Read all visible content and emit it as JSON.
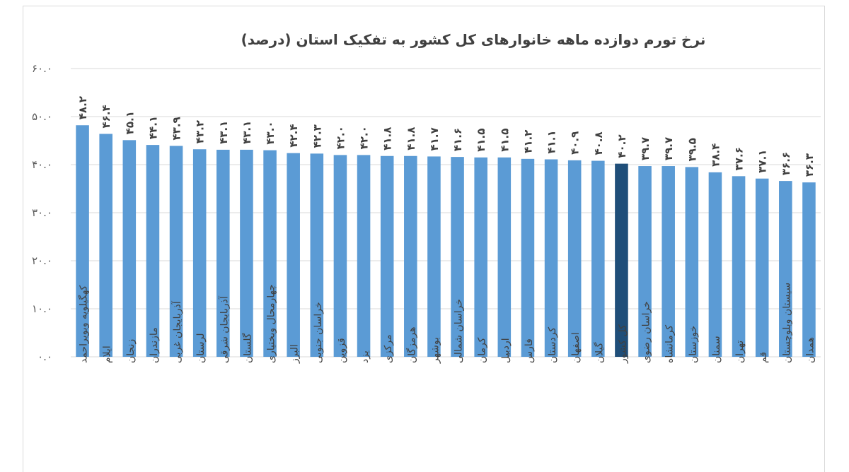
{
  "chart_data": {
    "type": "bar",
    "title": "نرخ تورم دوازده ماهه خانوارهای کل کشور به تفکیک استان (درصد)",
    "xlabel": "",
    "ylabel": "",
    "ylim": [
      0,
      60
    ],
    "yticks": [
      0,
      10,
      20,
      30,
      40,
      50,
      60
    ],
    "ytick_labels": [
      "۰.۰",
      "۱۰.۰",
      "۲۰.۰",
      "۳۰.۰",
      "۴۰.۰",
      "۵۰.۰",
      "۶۰.۰"
    ],
    "grid": true,
    "legend": "none",
    "bar_color": "#5b9bd5",
    "highlight_color": "#1f4e79",
    "highlight_category": "کل کشور",
    "categories": [
      "کهگیلویه وبویراحمد",
      "ایلام",
      "زنجان",
      "مازندران",
      "آذربایجان غربی",
      "لرستان",
      "آذربایجان شرقی",
      "گلستان",
      "چهارمحال وبختیاری",
      "البرز",
      "خراسان جنوبی",
      "قزوین",
      "یزد",
      "مرکزی",
      "هرمزگان",
      "بوشهر",
      "خراسان شمالی",
      "کرمان",
      "اردبیل",
      "فارس",
      "کردستان",
      "اصفهان",
      "گیلان",
      "کل کشور",
      "خراسان رضوی",
      "کرمانشاه",
      "خوزستان",
      "سمنان",
      "تهران",
      "قم",
      "سیستان وبلوچستان",
      "همدان"
    ],
    "values": [
      48.2,
      46.4,
      45.1,
      44.1,
      43.9,
      43.2,
      43.1,
      43.1,
      43.0,
      42.4,
      42.3,
      42.0,
      42.0,
      41.8,
      41.8,
      41.7,
      41.6,
      41.5,
      41.5,
      41.2,
      41.1,
      40.9,
      40.8,
      40.2,
      39.7,
      39.7,
      39.5,
      38.4,
      37.6,
      37.1,
      36.6,
      36.3
    ],
    "value_labels": [
      "۴۸.۲",
      "۴۶.۴",
      "۴۵.۱",
      "۴۴.۱",
      "۴۳.۹",
      "۴۳.۲",
      "۴۳.۱",
      "۴۳.۱",
      "۴۳.۰",
      "۴۲.۴",
      "۴۲.۳",
      "۴۲.۰",
      "۴۲.۰",
      "۴۱.۸",
      "۴۱.۸",
      "۴۱.۷",
      "۴۱.۶",
      "۴۱.۵",
      "۴۱.۵",
      "۴۱.۲",
      "۴۱.۱",
      "۴۰.۹",
      "۴۰.۸",
      "۴۰.۲",
      "۳۹.۷",
      "۳۹.۷",
      "۳۹.۵",
      "۳۸.۴",
      "۳۷.۶",
      "۳۷.۱",
      "۳۶.۶",
      "۳۶.۳"
    ]
  }
}
